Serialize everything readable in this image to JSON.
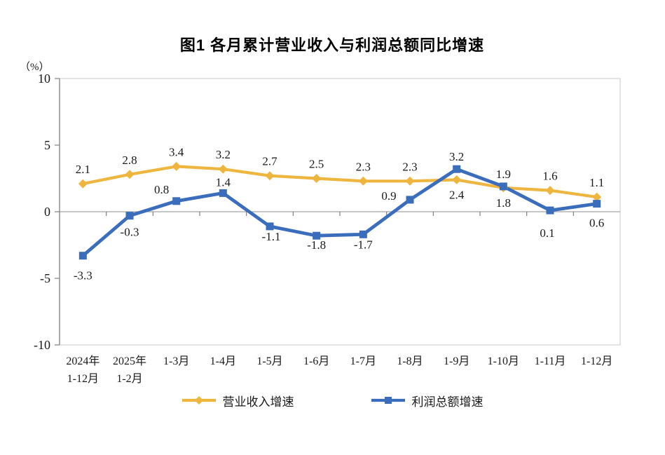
{
  "chart_data": {
    "type": "line",
    "title": "图1  各月累计营业收入与利润总额同比增速",
    "unit_label": "（%）",
    "categories": [
      "2024年\n1-12月",
      "2025年\n1-2月",
      "1-3月",
      "1-4月",
      "1-5月",
      "1-6月",
      "1-7月",
      "1-8月",
      "1-9月",
      "1-10月",
      "1-11月",
      "1-12月"
    ],
    "ylim": [
      -10,
      10
    ],
    "yticks": [
      10,
      5,
      0,
      -5,
      -10
    ],
    "grid": false,
    "legend_position": "bottom",
    "colors": {
      "revenue_line": "#EFB63F",
      "profit_line": "#3B6DBD",
      "axis": "#808080",
      "zero_line": "#A3A3A3",
      "plot_border": "#C9C9C9",
      "text": "#1A1A1A"
    },
    "series": [
      {
        "name": "营业收入增速",
        "color": "#EFB63F",
        "marker": "diamond",
        "values": [
          2.1,
          2.8,
          3.4,
          3.2,
          2.7,
          2.5,
          2.3,
          2.3,
          2.4,
          1.8,
          1.6,
          1.1
        ],
        "label_offsets": [
          [
            0,
            -15
          ],
          [
            0,
            -15
          ],
          [
            0,
            -15
          ],
          [
            0,
            -15
          ],
          [
            0,
            -15
          ],
          [
            0,
            -15
          ],
          [
            0,
            -15
          ],
          [
            0,
            -15
          ],
          [
            0,
            27
          ],
          [
            0,
            27
          ],
          [
            0,
            -15
          ],
          [
            0,
            -15
          ]
        ]
      },
      {
        "name": "利润总额增速",
        "color": "#3B6DBD",
        "marker": "square",
        "values": [
          -3.3,
          -0.3,
          0.8,
          1.4,
          -1.1,
          -1.8,
          -1.7,
          0.9,
          3.2,
          1.9,
          0.1,
          0.6
        ],
        "label_offsets": [
          [
            0,
            34
          ],
          [
            0,
            29
          ],
          [
            -21,
            -11
          ],
          [
            0,
            -10
          ],
          [
            2,
            20
          ],
          [
            0,
            19
          ],
          [
            0,
            20
          ],
          [
            -30,
            0
          ],
          [
            0,
            -12
          ],
          [
            0,
            -12
          ],
          [
            -4,
            38
          ],
          [
            0,
            33
          ]
        ]
      }
    ]
  }
}
